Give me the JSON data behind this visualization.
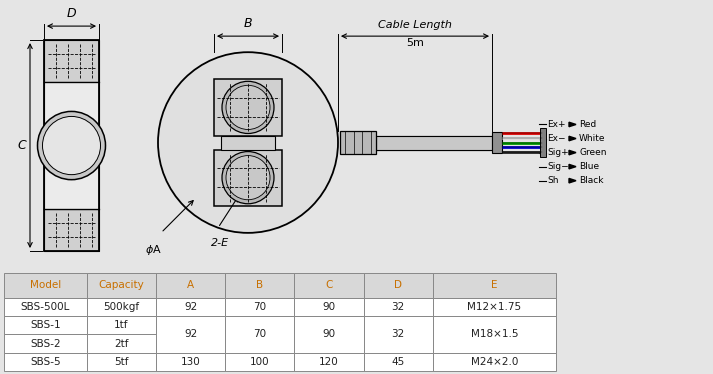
{
  "bg_color": "#e5e5e5",
  "black": "#000000",
  "table_data": [
    [
      "Model",
      "Capacity",
      "A",
      "B",
      "C",
      "D",
      "E"
    ],
    [
      "SBS-500L",
      "500kgf",
      "92",
      "70",
      "90",
      "32",
      "M12×1.75"
    ],
    [
      "SBS-1",
      "1tf",
      "",
      "",
      "",
      "",
      ""
    ],
    [
      "SBS-2",
      "2tf",
      "92",
      "70",
      "90",
      "32",
      "M18×1.5"
    ],
    [
      "SBS-5",
      "5tf",
      "130",
      "100",
      "120",
      "45",
      "M24×2.0"
    ]
  ],
  "wire_labels": [
    "Ex+",
    "Ex−",
    "Sig+",
    "Sig−",
    "Sh"
  ],
  "wire_colors_text": [
    "Red",
    "White",
    "Green",
    "Blue",
    "Black"
  ],
  "header_color": "#c87000"
}
